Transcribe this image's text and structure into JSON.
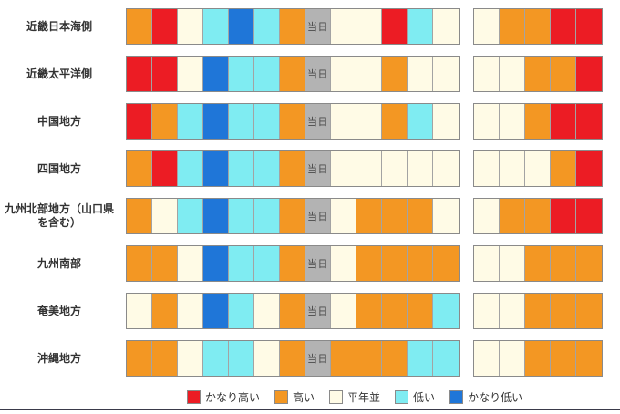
{
  "page": {
    "background": "#ffffff"
  },
  "colors": {
    "R": "#ec1c24",
    "O": "#f39723",
    "N": "#fffbe6",
    "C": "#7fecf2",
    "B": "#1f76d8",
    "G": "#b3b3b3"
  },
  "today_label": "当日",
  "legend": [
    {
      "code": "R",
      "label": "かなり高い"
    },
    {
      "code": "O",
      "label": "高い"
    },
    {
      "code": "N",
      "label": "平年並"
    },
    {
      "code": "C",
      "label": "低い"
    },
    {
      "code": "B",
      "label": "かなり低い"
    }
  ],
  "chart_data": {
    "type": "heatmap",
    "value_legend": {
      "R": "かなり高い",
      "O": "高い",
      "N": "平年並",
      "C": "低い",
      "B": "かなり低い",
      "G": "当日"
    },
    "main_block_columns": 13,
    "today_column_index": 7,
    "outlook_block_columns": 5,
    "rows": [
      {
        "region": "近畿日本海側",
        "main": [
          "O",
          "R",
          "N",
          "C",
          "B",
          "C",
          "O",
          "G",
          "N",
          "N",
          "R",
          "C",
          "N"
        ],
        "outlook": [
          "N",
          "O",
          "O",
          "R",
          "R"
        ]
      },
      {
        "region": "近畿太平洋側",
        "main": [
          "R",
          "R",
          "N",
          "B",
          "C",
          "C",
          "O",
          "G",
          "N",
          "N",
          "O",
          "N",
          "N"
        ],
        "outlook": [
          "N",
          "N",
          "O",
          "O",
          "R"
        ]
      },
      {
        "region": "中国地方",
        "main": [
          "R",
          "O",
          "C",
          "B",
          "C",
          "C",
          "O",
          "G",
          "N",
          "N",
          "O",
          "C",
          "N"
        ],
        "outlook": [
          "N",
          "N",
          "O",
          "R",
          "R"
        ]
      },
      {
        "region": "四国地方",
        "main": [
          "O",
          "R",
          "C",
          "B",
          "C",
          "C",
          "O",
          "G",
          "N",
          "N",
          "N",
          "N",
          "N"
        ],
        "outlook": [
          "N",
          "N",
          "N",
          "O",
          "R"
        ]
      },
      {
        "region": "九州北部地方（山口県を含む）",
        "main": [
          "O",
          "N",
          "C",
          "B",
          "C",
          "C",
          "O",
          "G",
          "N",
          "O",
          "O",
          "O",
          "N"
        ],
        "outlook": [
          "N",
          "O",
          "O",
          "R",
          "R"
        ]
      },
      {
        "region": "九州南部",
        "main": [
          "O",
          "O",
          "N",
          "B",
          "C",
          "C",
          "O",
          "G",
          "N",
          "O",
          "O",
          "O",
          "O"
        ],
        "outlook": [
          "N",
          "N",
          "O",
          "O",
          "O"
        ]
      },
      {
        "region": "奄美地方",
        "main": [
          "N",
          "O",
          "N",
          "B",
          "C",
          "N",
          "O",
          "G",
          "N",
          "O",
          "O",
          "O",
          "C"
        ],
        "outlook": [
          "N",
          "N",
          "O",
          "O",
          "O"
        ]
      },
      {
        "region": "沖縄地方",
        "main": [
          "O",
          "O",
          "N",
          "C",
          "C",
          "N",
          "O",
          "G",
          "O",
          "O",
          "O",
          "C",
          "C"
        ],
        "outlook": [
          "N",
          "N",
          "O",
          "O",
          "O"
        ]
      }
    ]
  }
}
